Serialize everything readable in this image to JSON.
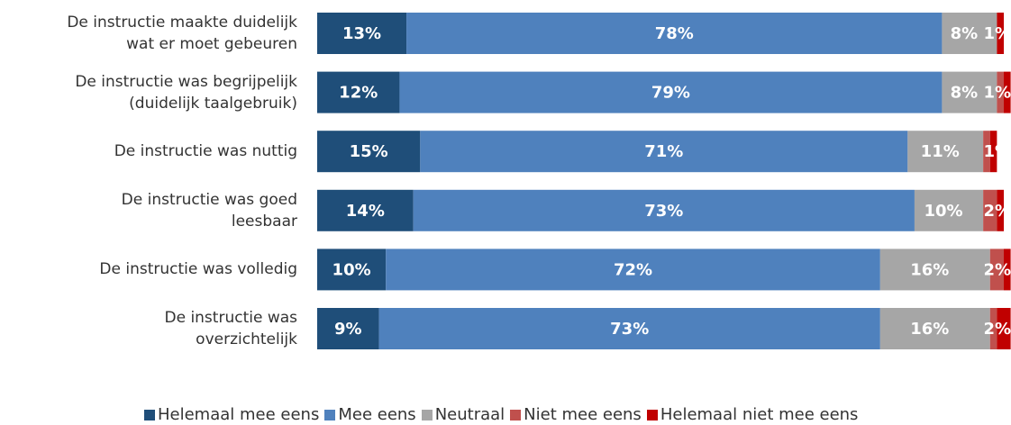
{
  "chart_data": {
    "type": "stacked-bar-horizontal",
    "categories": [
      "De instructie maakte duidelijk\nwat er moet gebeuren",
      "De instructie was begrijpelijk\n(duidelijk taalgebruik)",
      "De instructie was nuttig",
      "De instructie was goed\nleesbaar",
      "De instructie was volledig",
      "De instructie was\noverzichtelijk"
    ],
    "xlim": [
      0,
      100
    ],
    "legend": "bottom",
    "series": [
      {
        "name": "Helemaal mee eens",
        "color": "#1f4e79",
        "values": [
          13,
          12,
          15,
          14,
          10,
          9
        ],
        "value_labels": [
          "13%",
          "12%",
          "15%",
          "14%",
          "10%",
          "9%"
        ]
      },
      {
        "name": "Mee eens",
        "color": "#4f81bd",
        "values": [
          78,
          79,
          71,
          73,
          72,
          73
        ],
        "value_labels": [
          "78%",
          "79%",
          "71%",
          "73%",
          "72%",
          "73%"
        ]
      },
      {
        "name": "Neutraal",
        "color": "#a6a6a6",
        "values": [
          8,
          8,
          11,
          10,
          16,
          16
        ],
        "value_labels": [
          "8%",
          "8%",
          "11%",
          "10%",
          "16%",
          "16%"
        ]
      },
      {
        "name": "Niet mee eens",
        "color": "#c0504d",
        "values": [
          0,
          1,
          1,
          2,
          2,
          1
        ],
        "value_labels": [
          null,
          null,
          null,
          "2%",
          "2%",
          null
        ]
      },
      {
        "name": "Helemaal niet mee eens",
        "color": "#c00000",
        "values": [
          1,
          1,
          1,
          1,
          1,
          2
        ],
        "value_labels": [
          "1%",
          "1%",
          "1%",
          null,
          null,
          "2%"
        ]
      }
    ]
  }
}
